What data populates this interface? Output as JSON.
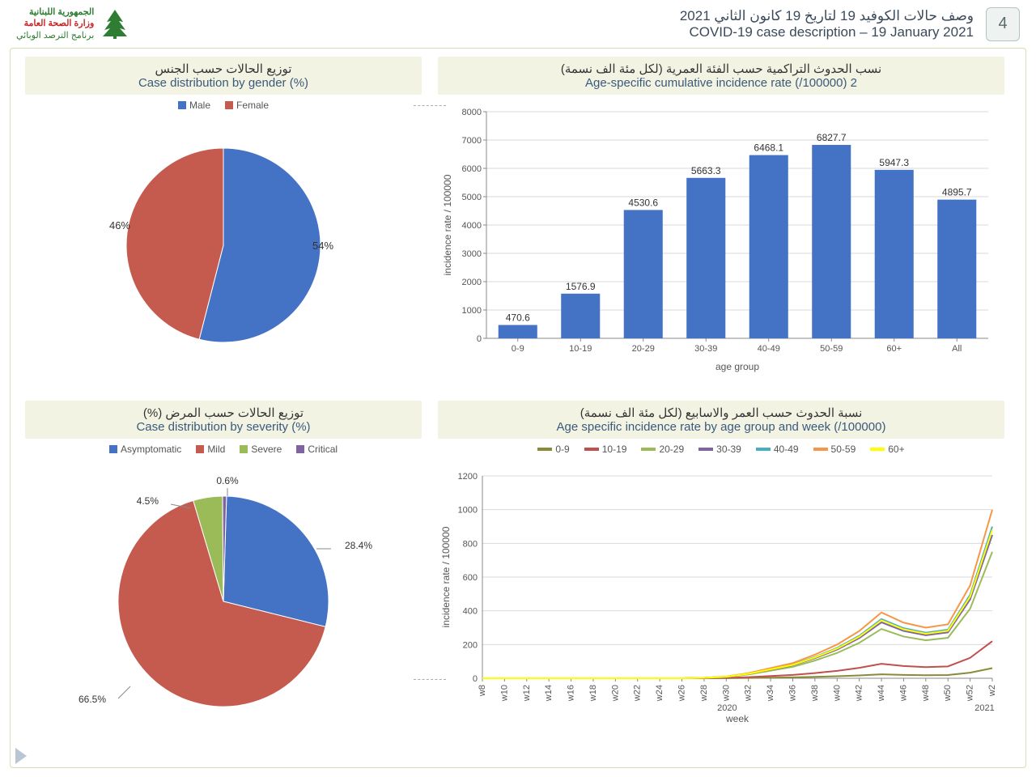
{
  "header": {
    "page_number": "4",
    "title_ar": "وصف حالات الكوفيد 19 لتاريخ 19 كانون الثاني 2021",
    "title_en": "COVID-19 case description – 19 January 2021",
    "logo_line1": "الجمهورية اللبنانية",
    "logo_line2": "وزارة الصحة العامة",
    "logo_line3": "برنامج الترصد الوبائي"
  },
  "palette": {
    "blue": "#4472c4",
    "red": "#c55a4e",
    "olive": "#9bbb59",
    "purple": "#8064a2",
    "teal": "#4bacc6",
    "orange": "#f79646",
    "yellow": "#ffff00",
    "grid": "#d9d9d9",
    "axis": "#888888",
    "title_bar_bg": "#f3f3e4"
  },
  "gender_pie": {
    "title_ar": "توزيع الحالات حسب الجنس",
    "title_en": "Case distribution by gender (%)",
    "slices": [
      {
        "label": "Male",
        "value": 54,
        "color": "#4472c4",
        "display": "54%"
      },
      {
        "label": "Female",
        "value": 46,
        "color": "#c55a4e",
        "display": "46%"
      }
    ]
  },
  "severity_pie": {
    "title_ar": "توزيع الحالات حسب المرض (%)",
    "title_en": "Case distribution by severity (%)",
    "slices": [
      {
        "label": "Asymptomatic",
        "value": 28.4,
        "color": "#4472c4",
        "display": "28.4%"
      },
      {
        "label": "Mild",
        "value": 66.5,
        "color": "#c55a4e",
        "display": "66.5%"
      },
      {
        "label": "Severe",
        "value": 4.5,
        "color": "#9bbb59",
        "display": "4.5%"
      },
      {
        "label": "Critical",
        "value": 0.6,
        "color": "#8064a2",
        "display": "0.6%"
      }
    ]
  },
  "age_bar": {
    "title_ar": "نسب الحدوث التراكمية حسب الفئة العمرية (لكل مئة الف نسمة)",
    "title_en": "Age-specific cumulative incidence rate (/100000) 2",
    "y_label": "incidence rate / 100000",
    "x_label": "age group",
    "y_max": 8000,
    "y_step": 1000,
    "bar_color": "#4472c4",
    "categories": [
      "0-9",
      "10-19",
      "20-29",
      "30-39",
      "40-49",
      "50-59",
      "60+",
      "All"
    ],
    "values": [
      470.6,
      1576.9,
      4530.6,
      5663.3,
      6468.1,
      6827.7,
      5947.3,
      4895.7
    ]
  },
  "age_week_line": {
    "title_ar": "نسبة الحدوث حسب العمر والاسابيع (لكل مئة الف نسمة)",
    "title_en": "Age specific incidence rate by age group and week (/100000)",
    "y_label": "incidence rate / 100000",
    "x_label": "week",
    "y_max": 1200,
    "y_step": 200,
    "x_ticks": [
      "w8",
      "w10",
      "w12",
      "w14",
      "w16",
      "w18",
      "w20",
      "w22",
      "w24",
      "w26",
      "w28",
      "w30",
      "w32",
      "w34",
      "w36",
      "w38",
      "w40",
      "w42",
      "w44",
      "w46",
      "w48",
      "w50",
      "w52",
      "w2"
    ],
    "year_labels": {
      "y2020": "2020",
      "y2021": "2021"
    },
    "series": [
      {
        "name": "0-9",
        "color": "#8a8a39",
        "scale": 0.06
      },
      {
        "name": "10-19",
        "color": "#c0504d",
        "scale": 0.22
      },
      {
        "name": "20-29",
        "color": "#9bbb59",
        "scale": 0.75
      },
      {
        "name": "30-39",
        "color": "#8064a2",
        "scale": 0.85
      },
      {
        "name": "40-49",
        "color": "#4bacc6",
        "scale": 0.9
      },
      {
        "name": "50-59",
        "color": "#f79646",
        "scale": 1.0
      },
      {
        "name": "60+",
        "color": "#ffff00",
        "scale": 0.88
      }
    ],
    "base_curve": [
      0,
      0,
      0,
      0,
      0,
      0,
      0,
      0,
      0,
      0,
      3,
      10,
      30,
      60,
      90,
      140,
      200,
      280,
      390,
      330,
      300,
      320,
      550,
      1000
    ]
  }
}
